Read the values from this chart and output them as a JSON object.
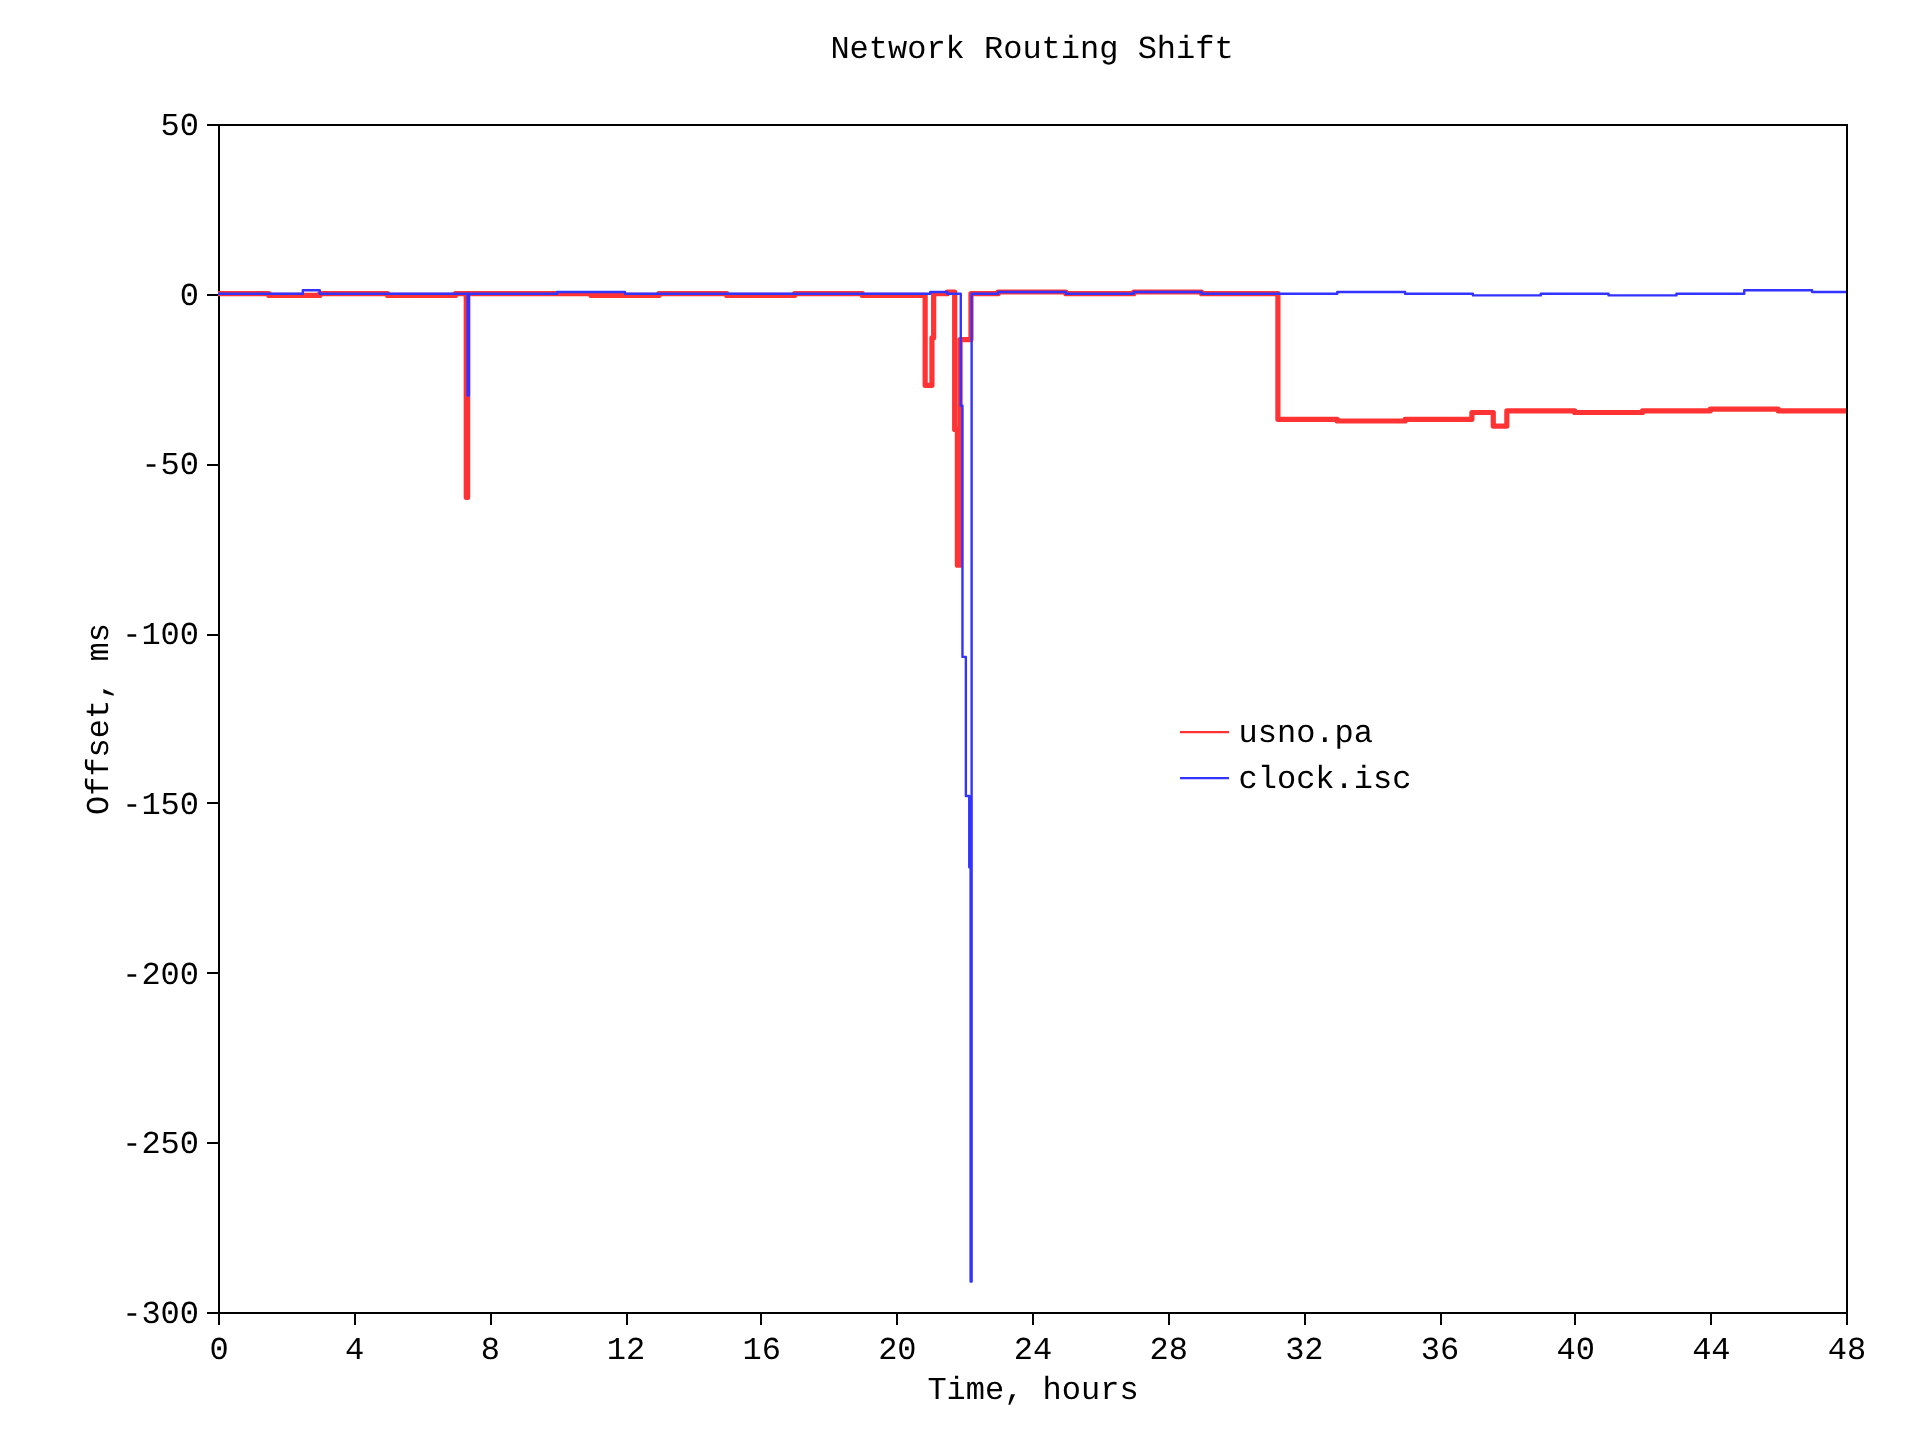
{
  "chart_data": {
    "type": "step",
    "title": "Network Routing Shift",
    "xlabel": "Time, hours",
    "ylabel": "Offset, ms",
    "xlim": [
      0,
      48
    ],
    "xticks": [
      0,
      4,
      8,
      12,
      16,
      20,
      24,
      28,
      32,
      36,
      40,
      44,
      48
    ],
    "ylim": [
      -300,
      50
    ],
    "yticks": [
      -300,
      -250,
      -200,
      -150,
      -100,
      -50,
      0,
      50
    ],
    "grid": false,
    "legend": "right",
    "series": [
      {
        "name": "usno.pa",
        "color": "#ff3333",
        "x": [
          0,
          1.5,
          3,
          5,
          7,
          7.32,
          7.36,
          9,
          11,
          13,
          15,
          17,
          19,
          20.85,
          21.05,
          21.1,
          21.5,
          21.72,
          21.8,
          21.88,
          22.2,
          23,
          25,
          27,
          29,
          31.25,
          33,
          35,
          36.97,
          37.6,
          38,
          40,
          42,
          44,
          46,
          48
        ],
        "values": [
          0,
          -0.5,
          0,
          -0.5,
          0,
          -60,
          0,
          0,
          -0.5,
          0,
          -0.5,
          0,
          -0.5,
          -27,
          -13,
          0,
          0.5,
          -40,
          -80,
          -13.5,
          0,
          0.5,
          0,
          0.5,
          0,
          -37,
          -37.5,
          -37,
          -35,
          -39,
          -34.5,
          -35,
          -34.5,
          -34,
          -34.5,
          -35
        ]
      },
      {
        "name": "clock.isc",
        "color": "#3333ff",
        "x": [
          0,
          1,
          2,
          2.5,
          3,
          5,
          7.3,
          7.36,
          7.4,
          9,
          10,
          12,
          15,
          18,
          20,
          21,
          21.5,
          21.85,
          21.9,
          21.95,
          22.05,
          22.15,
          22.19,
          22.22,
          23,
          25,
          27,
          29,
          31,
          33,
          35,
          37,
          39,
          41,
          43,
          45,
          47,
          48
        ],
        "values": [
          0,
          0,
          0,
          1,
          0,
          0,
          0,
          -30,
          0,
          0,
          0.5,
          0,
          0,
          0,
          0,
          0.5,
          0,
          0,
          -33,
          -107,
          -148,
          -169,
          -291,
          0,
          0.5,
          0,
          0.5,
          0,
          0,
          0.5,
          0,
          -0.5,
          0,
          -0.5,
          0,
          1,
          0.5,
          0.5
        ]
      }
    ]
  }
}
